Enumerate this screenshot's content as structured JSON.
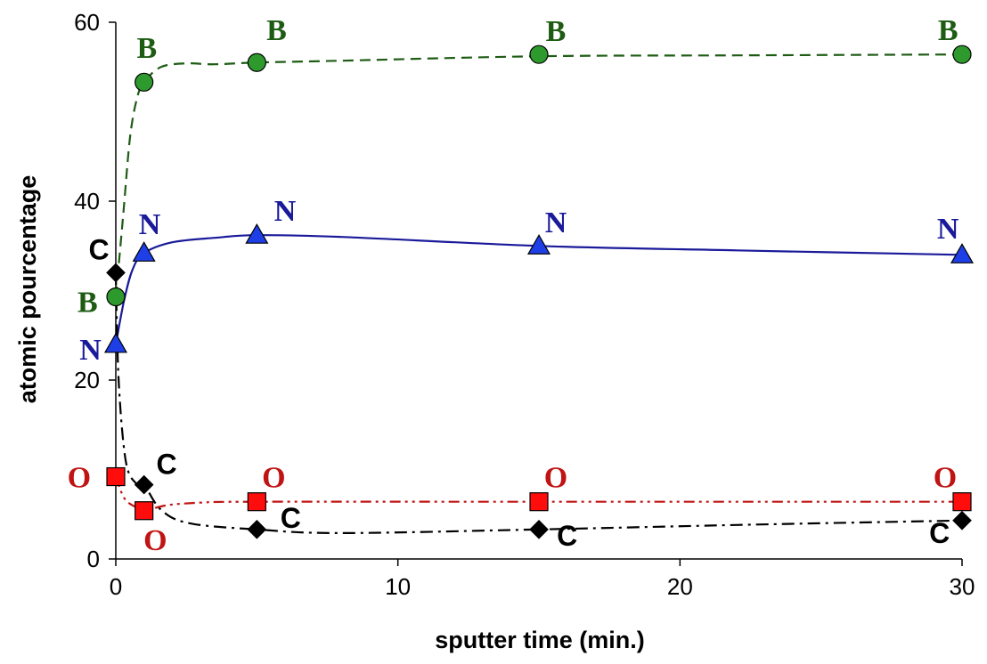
{
  "chart_data": {
    "type": "scatter",
    "title": "",
    "xlabel": "sputter time (min.)",
    "ylabel": "atomic pourcentage",
    "xlim": [
      0,
      30
    ],
    "ylim": [
      0,
      60
    ],
    "xticks": [
      "0",
      "10",
      "20",
      "30"
    ],
    "yticks": [
      "0",
      "20",
      "40",
      "60"
    ],
    "grid": false,
    "legend": "none",
    "series": [
      {
        "element": "B",
        "marker": "circle",
        "line": "dashed",
        "color": "#1e5c14",
        "fill": "#2e9a2e",
        "x": [
          0,
          1,
          5,
          15,
          30
        ],
        "y": [
          29.3,
          53.3,
          55.5,
          56.4,
          56.4
        ],
        "curve": [
          [
            0,
            29.3
          ],
          [
            0.25,
            38
          ],
          [
            0.5,
            47
          ],
          [
            0.75,
            51.5
          ],
          [
            1,
            53.3
          ],
          [
            1.6,
            55
          ],
          [
            2.5,
            55.4
          ],
          [
            3.5,
            55.3
          ],
          [
            5,
            55.5
          ],
          [
            8,
            55.7
          ],
          [
            15,
            56.2
          ],
          [
            22,
            56.3
          ],
          [
            30,
            56.4
          ]
        ],
        "labels": [
          {
            "text": "B",
            "x": -1.0,
            "y": 27.6
          },
          {
            "text": "B",
            "x": 1.1,
            "y": 56.0
          },
          {
            "text": "B",
            "x": 5.7,
            "y": 58.0
          },
          {
            "text": "B",
            "x": 15.6,
            "y": 57.9
          },
          {
            "text": "B",
            "x": 29.5,
            "y": 58.0
          }
        ]
      },
      {
        "element": "N",
        "marker": "triangle",
        "line": "solid",
        "color": "#1a1a9a",
        "fill": "#1f3fe6",
        "x": [
          0,
          1,
          5,
          15,
          30
        ],
        "y": [
          24.0,
          34.2,
          36.2,
          35.0,
          34.0
        ],
        "curve": [
          [
            0,
            24.0
          ],
          [
            0.3,
            29
          ],
          [
            0.6,
            32.4
          ],
          [
            1,
            34.2
          ],
          [
            2,
            35.4
          ],
          [
            3.5,
            35.9
          ],
          [
            5,
            36.2
          ],
          [
            8,
            36.0
          ],
          [
            15,
            35.0
          ],
          [
            22,
            34.5
          ],
          [
            30,
            34.0
          ]
        ],
        "labels": [
          {
            "text": "N",
            "x": -0.9,
            "y": 22.3
          },
          {
            "text": "N",
            "x": 1.2,
            "y": 36.3
          },
          {
            "text": "N",
            "x": 6.0,
            "y": 37.8
          },
          {
            "text": "N",
            "x": 15.6,
            "y": 36.5
          },
          {
            "text": "N",
            "x": 29.5,
            "y": 35.8
          }
        ]
      },
      {
        "element": "C",
        "marker": "diamond",
        "line": "dashdot",
        "color": "#000000",
        "fill": "#000000",
        "x": [
          0,
          1,
          5,
          15,
          30
        ],
        "y": [
          32.0,
          8.3,
          3.3,
          3.3,
          4.3
        ],
        "curve": [
          [
            0,
            32.0
          ],
          [
            0.1,
            20
          ],
          [
            0.35,
            11
          ],
          [
            0.7,
            8.5
          ],
          [
            1,
            8.3
          ],
          [
            1.6,
            5.5
          ],
          [
            2.6,
            4.0
          ],
          [
            5,
            3.3
          ],
          [
            8,
            2.9
          ],
          [
            15,
            3.3
          ],
          [
            22,
            3.8
          ],
          [
            30,
            4.3
          ]
        ],
        "labels": [
          {
            "text": "C",
            "x": -0.6,
            "y": 33.5
          },
          {
            "text": "C",
            "x": 1.8,
            "y": 9.5
          },
          {
            "text": "C",
            "x": 6.2,
            "y": 3.5
          },
          {
            "text": "C",
            "x": 16.0,
            "y": 1.5
          },
          {
            "text": "C",
            "x": 29.2,
            "y": 1.8
          }
        ]
      },
      {
        "element": "O",
        "marker": "square",
        "line": "dashdotdot",
        "color": "#c01414",
        "fill": "#ff0d0d",
        "x": [
          0,
          1,
          5,
          15,
          30
        ],
        "y": [
          9.2,
          5.4,
          6.4,
          6.4,
          6.4
        ],
        "curve": [
          [
            0,
            9.2
          ],
          [
            0.3,
            6.8
          ],
          [
            0.7,
            5.8
          ],
          [
            1,
            5.4
          ],
          [
            1.8,
            6.0
          ],
          [
            3,
            6.3
          ],
          [
            5,
            6.4
          ],
          [
            15,
            6.4
          ],
          [
            30,
            6.4
          ]
        ],
        "labels": [
          {
            "text": "O",
            "x": -1.3,
            "y": 8.0
          },
          {
            "text": "O",
            "x": 1.4,
            "y": 1.0
          },
          {
            "text": "O",
            "x": 5.6,
            "y": 8.0
          },
          {
            "text": "O",
            "x": 15.6,
            "y": 8.0
          },
          {
            "text": "O",
            "x": 29.4,
            "y": 8.0
          }
        ]
      }
    ]
  }
}
